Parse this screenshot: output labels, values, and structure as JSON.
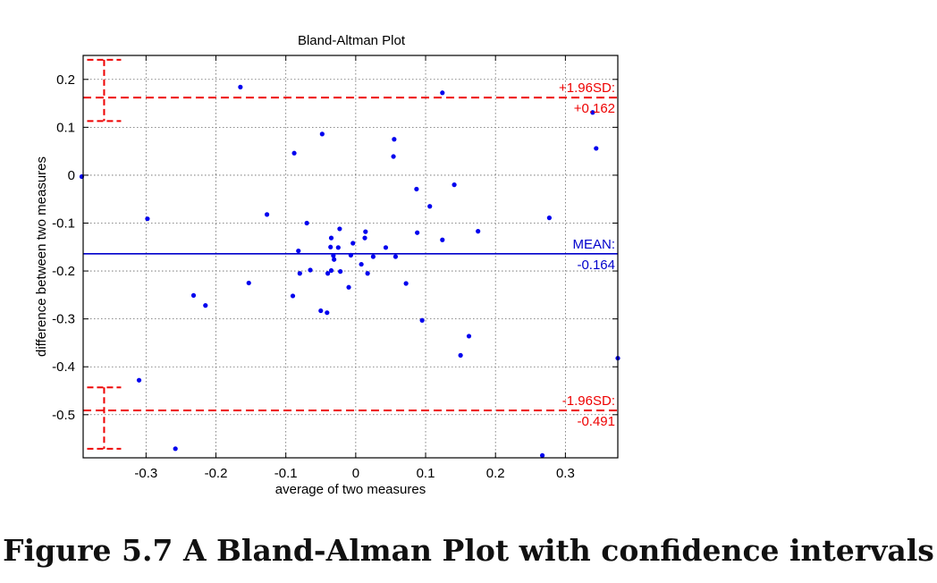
{
  "caption": "Figure 5.7 A Bland-Alman Plot with confidence intervals",
  "chart_data": {
    "type": "scatter",
    "title": "Bland-Altman Plot",
    "xlabel": "average of two measures",
    "ylabel": "difference between two measures",
    "xlim": [
      -0.39,
      0.375
    ],
    "ylim": [
      -0.59,
      0.25
    ],
    "xticks": [
      -0.3,
      -0.2,
      -0.1,
      0,
      0.1,
      0.2,
      0.3
    ],
    "xtick_labels": [
      "-0.3",
      "-0.2",
      "-0.1",
      "0",
      "0.1",
      "0.2",
      "0.3"
    ],
    "yticks": [
      0.2,
      0.1,
      0,
      -0.1,
      -0.2,
      -0.3,
      -0.4,
      -0.5
    ],
    "ytick_labels": [
      "0.2",
      "0.1",
      "0",
      "-0.1",
      "-0.2",
      "-0.3",
      "-0.4",
      "-0.5"
    ],
    "grid": true,
    "colors": {
      "points": "#0000ee",
      "mean": "#0000cc",
      "limits": "#ee0000"
    },
    "mean_line": {
      "y": -0.164,
      "label_1": "MEAN:",
      "label_2": "-0.164"
    },
    "upper_limit": {
      "y": 0.162,
      "label_1": "+1.96SD:",
      "label_2": "+0.162",
      "ci": [
        0.113,
        0.241
      ]
    },
    "lower_limit": {
      "y": -0.491,
      "label_1": "-1.96SD:",
      "label_2": "-0.491",
      "ci": [
        -0.571,
        -0.443
      ]
    },
    "points": [
      [
        -0.392,
        -0.003
      ],
      [
        -0.298,
        -0.091
      ],
      [
        -0.31,
        -0.428
      ],
      [
        -0.258,
        -0.571
      ],
      [
        -0.232,
        -0.251
      ],
      [
        -0.215,
        -0.272
      ],
      [
        -0.165,
        0.184
      ],
      [
        -0.153,
        -0.225
      ],
      [
        -0.127,
        -0.082
      ],
      [
        -0.09,
        -0.252
      ],
      [
        -0.088,
        0.046
      ],
      [
        -0.082,
        -0.158
      ],
      [
        -0.08,
        -0.205
      ],
      [
        -0.07,
        -0.1
      ],
      [
        -0.065,
        -0.198
      ],
      [
        -0.05,
        -0.283
      ],
      [
        -0.048,
        0.086
      ],
      [
        -0.041,
        -0.287
      ],
      [
        -0.04,
        -0.205
      ],
      [
        -0.036,
        -0.15
      ],
      [
        -0.035,
        -0.199
      ],
      [
        -0.035,
        -0.131
      ],
      [
        -0.032,
        -0.168
      ],
      [
        -0.031,
        -0.176
      ],
      [
        -0.025,
        -0.151
      ],
      [
        -0.023,
        -0.112
      ],
      [
        -0.022,
        -0.201
      ],
      [
        -0.01,
        -0.234
      ],
      [
        -0.007,
        -0.167
      ],
      [
        -0.004,
        -0.142
      ],
      [
        0.008,
        -0.186
      ],
      [
        0.013,
        -0.131
      ],
      [
        0.014,
        -0.118
      ],
      [
        0.017,
        -0.205
      ],
      [
        0.025,
        -0.17
      ],
      [
        0.043,
        -0.151
      ],
      [
        0.054,
        0.039
      ],
      [
        0.055,
        0.075
      ],
      [
        0.057,
        -0.17
      ],
      [
        0.072,
        -0.226
      ],
      [
        0.087,
        -0.029
      ],
      [
        0.088,
        -0.12
      ],
      [
        0.095,
        -0.303
      ],
      [
        0.106,
        -0.065
      ],
      [
        0.124,
        0.172
      ],
      [
        0.124,
        -0.135
      ],
      [
        0.141,
        -0.02
      ],
      [
        0.15,
        -0.376
      ],
      [
        0.162,
        -0.336
      ],
      [
        0.175,
        -0.117
      ],
      [
        0.267,
        -0.585
      ],
      [
        0.277,
        -0.089
      ],
      [
        0.339,
        0.131
      ],
      [
        0.344,
        0.056
      ],
      [
        0.375,
        -0.382
      ]
    ]
  }
}
